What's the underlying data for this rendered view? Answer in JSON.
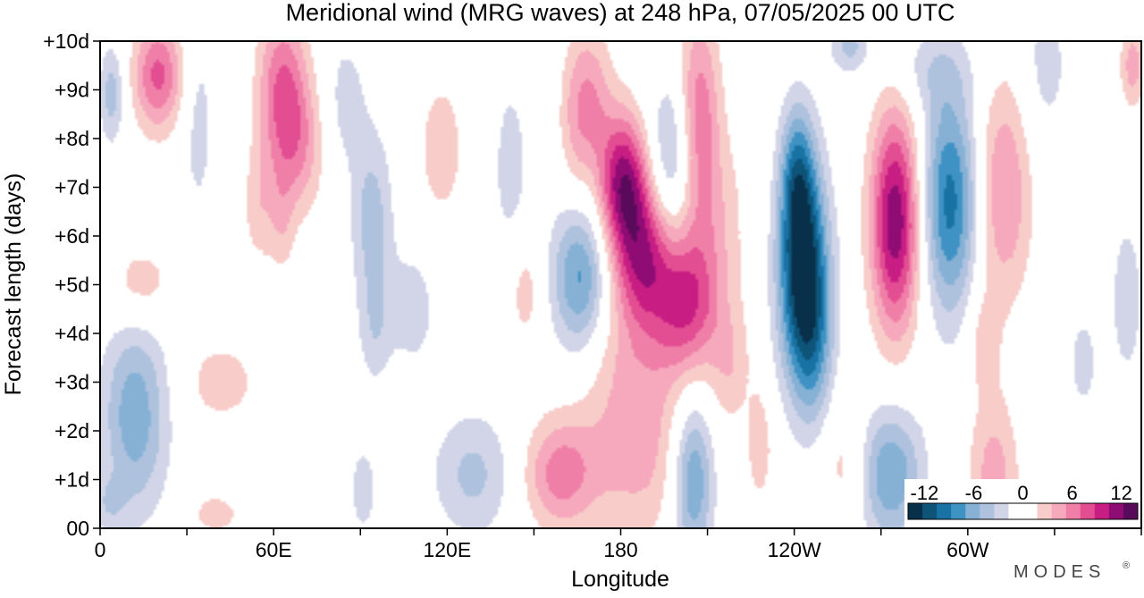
{
  "chart_data": {
    "type": "heatmap",
    "title": "Meridional wind (MRG waves) at  248 hPa,  07/05/2025  00 UTC",
    "xlabel": "Longitude",
    "ylabel": "Forecast length (days)",
    "xlim": [
      0,
      360
    ],
    "ylim": [
      0,
      10
    ],
    "x_ticks": [
      {
        "lon": 0,
        "label": "0"
      },
      {
        "lon": 60,
        "label": "60E"
      },
      {
        "lon": 120,
        "label": "120E"
      },
      {
        "lon": 180,
        "label": "180"
      },
      {
        "lon": 240,
        "label": "120W"
      },
      {
        "lon": 300,
        "label": "60W"
      }
    ],
    "y_ticks": [
      {
        "day": 0,
        "label": "00"
      },
      {
        "day": 1,
        "label": "+1d"
      },
      {
        "day": 2,
        "label": "+2d"
      },
      {
        "day": 3,
        "label": "+3d"
      },
      {
        "day": 4,
        "label": "+4d"
      },
      {
        "day": 5,
        "label": "+5d"
      },
      {
        "day": 6,
        "label": "+6d"
      },
      {
        "day": 7,
        "label": "+7d"
      },
      {
        "day": 8,
        "label": "+8d"
      },
      {
        "day": 9,
        "label": "+9d"
      },
      {
        "day": 10,
        "label": "+10d"
      }
    ],
    "colorbar": {
      "labels": [
        "-12",
        "-6",
        "0",
        "6",
        "12"
      ],
      "levels": [
        -12,
        -6,
        0,
        6,
        12
      ],
      "vmin": -14,
      "vmax": 14,
      "colors": [
        "#08304b",
        "#0e5378",
        "#1872a4",
        "#3f92c4",
        "#86b1d5",
        "#aec2de",
        "#d2d5e8",
        "#ffffff",
        "#ffffff",
        "#f8cdc9",
        "#f6a9bc",
        "#f07fa8",
        "#e34d92",
        "#c81e84",
        "#8f0c74",
        "#5a0a5a"
      ]
    },
    "features": [
      {
        "lon": 4,
        "day": 8.9,
        "value": -4.5,
        "wlon": 3,
        "wday": 0.7
      },
      {
        "lon": 20,
        "day": 9.3,
        "value": 7.5,
        "wlon": 6,
        "wday": 0.8
      },
      {
        "lon": 12,
        "day": 2.3,
        "value": -6.5,
        "wlon": 8,
        "wday": 1.4
      },
      {
        "lon": 14,
        "day": 5.0,
        "value": 3.2,
        "wlon": 8,
        "wday": 0.6
      },
      {
        "lon": 3,
        "day": 0.5,
        "value": -2.5,
        "wlon": 4,
        "wday": 0.4
      },
      {
        "lon": 34,
        "day": 8.3,
        "value": -2.5,
        "wlon": 4,
        "wday": 1.5
      },
      {
        "lon": 42,
        "day": 3.0,
        "value": 2.8,
        "wlon": 9,
        "wday": 0.6
      },
      {
        "lon": 40,
        "day": 0.3,
        "value": 2.8,
        "wlon": 6,
        "wday": 0.3
      },
      {
        "lon": 55,
        "day": 6.6,
        "value": 2.8,
        "wlon": 4,
        "wday": 0.9
      },
      {
        "lon": 63,
        "day": 6.3,
        "value": 2.5,
        "wlon": 3,
        "wday": 0.8
      },
      {
        "lon": 63,
        "day": 9.0,
        "value": 7.0,
        "wlon": 6,
        "wday": 1.2
      },
      {
        "lon": 69,
        "day": 7.8,
        "value": 4.0,
        "wlon": 6,
        "wday": 1.0
      },
      {
        "lon": 85,
        "day": 8.8,
        "value": -2.5,
        "wlon": 5,
        "wday": 1.0
      },
      {
        "lon": 94,
        "day": 6.3,
        "value": -4.5,
        "wlon": 5,
        "wday": 1.3
      },
      {
        "lon": 95,
        "day": 4.0,
        "value": -2.5,
        "wlon": 4,
        "wday": 0.8
      },
      {
        "lon": 91,
        "day": 0.8,
        "value": -2.5,
        "wlon": 4,
        "wday": 0.8
      },
      {
        "lon": 108,
        "day": 4.5,
        "value": -2.8,
        "wlon": 6,
        "wday": 0.9
      },
      {
        "lon": 118,
        "day": 7.8,
        "value": 2.8,
        "wlon": 6,
        "wday": 1.1
      },
      {
        "lon": 129,
        "day": 1.1,
        "value": -4.0,
        "wlon": 10,
        "wday": 0.9
      },
      {
        "lon": 142,
        "day": 7.4,
        "value": -2.5,
        "wlon": 5,
        "wday": 1.5
      },
      {
        "lon": 147,
        "day": 4.9,
        "value": 2.8,
        "wlon": 4,
        "wday": 0.8
      },
      {
        "lon": 159,
        "day": 1.1,
        "value": 6.0,
        "wlon": 9,
        "wday": 0.8
      },
      {
        "lon": 166,
        "day": 5.1,
        "value": -8.0,
        "wlon": 7,
        "wday": 1.1
      },
      {
        "lon": 164,
        "day": 8.3,
        "value": 2.8,
        "wlon": 4,
        "wday": 1.2
      },
      {
        "lon": 170,
        "day": 8.8,
        "value": 4.5,
        "wlon": 5,
        "wday": 1.1
      },
      {
        "lon": 181,
        "day": 7.1,
        "value": 11.0,
        "wlon": 6,
        "wday": 1.0
      },
      {
        "lon": 188,
        "day": 5.6,
        "value": 8.0,
        "wlon": 7,
        "wday": 1.0
      },
      {
        "lon": 184,
        "day": 3.6,
        "value": 3.5,
        "wlon": 14,
        "wday": 1.5
      },
      {
        "lon": 186,
        "day": 1.3,
        "value": 3.2,
        "wlon": 12,
        "wday": 1.2
      },
      {
        "lon": 198,
        "day": 7.5,
        "value": -5.0,
        "wlon": 6,
        "wday": 1.2
      },
      {
        "lon": 203,
        "day": 4.6,
        "value": 7.5,
        "wlon": 8,
        "wday": 1.0
      },
      {
        "lon": 207,
        "day": 8.5,
        "value": 6.5,
        "wlon": 5,
        "wday": 1.5
      },
      {
        "lon": 211,
        "day": 6.4,
        "value": 3.0,
        "wlon": 9,
        "wday": 1.3
      },
      {
        "lon": 205,
        "day": 1.0,
        "value": -7.5,
        "wlon": 5,
        "wday": 1.2
      },
      {
        "lon": 218,
        "day": 3.3,
        "value": 2.8,
        "wlon": 5,
        "wday": 0.9
      },
      {
        "lon": 228,
        "day": 1.7,
        "value": 3.2,
        "wlon": 3,
        "wday": 0.8
      },
      {
        "lon": 243,
        "day": 5.3,
        "value": -14.0,
        "wlon": 6,
        "wday": 1.6
      },
      {
        "lon": 241,
        "day": 7.3,
        "value": -6.0,
        "wlon": 4,
        "wday": 1.0
      },
      {
        "lon": 247,
        "day": 3.6,
        "value": -4.0,
        "wlon": 5,
        "wday": 1.2
      },
      {
        "lon": 258,
        "day": 1.3,
        "value": 2.8,
        "wlon": 6,
        "wday": 1.0
      },
      {
        "lon": 275,
        "day": 6.3,
        "value": 12.0,
        "wlon": 6,
        "wday": 1.6
      },
      {
        "lon": 273,
        "day": 1.1,
        "value": -7.0,
        "wlon": 8,
        "wday": 1.0
      },
      {
        "lon": 259,
        "day": 9.9,
        "value": -4.0,
        "wlon": 5,
        "wday": 0.4
      },
      {
        "lon": 287,
        "day": 9.4,
        "value": -2.5,
        "wlon": 10,
        "wday": 0.6
      },
      {
        "lon": 294,
        "day": 6.7,
        "value": -9.5,
        "wlon": 7,
        "wday": 1.6
      },
      {
        "lon": 312,
        "day": 6.9,
        "value": 5.5,
        "wlon": 7,
        "wday": 1.6
      },
      {
        "lon": 305,
        "day": 3.9,
        "value": 2.5,
        "wlon": 4,
        "wday": 0.8
      },
      {
        "lon": 309,
        "day": 1.0,
        "value": 4.5,
        "wlon": 6,
        "wday": 1.2
      },
      {
        "lon": 327,
        "day": 9.5,
        "value": -2.5,
        "wlon": 6,
        "wday": 1.2
      },
      {
        "lon": 355,
        "day": 4.7,
        "value": -3.0,
        "wlon": 4,
        "wday": 1.2
      },
      {
        "lon": 340,
        "day": 3.4,
        "value": -2.5,
        "wlon": 4,
        "wday": 0.8
      },
      {
        "lon": 357,
        "day": 9.5,
        "value": 4.5,
        "wlon": 3,
        "wday": 0.6
      }
    ]
  },
  "branding": {
    "logo_text": "MODES",
    "mark": "®"
  }
}
